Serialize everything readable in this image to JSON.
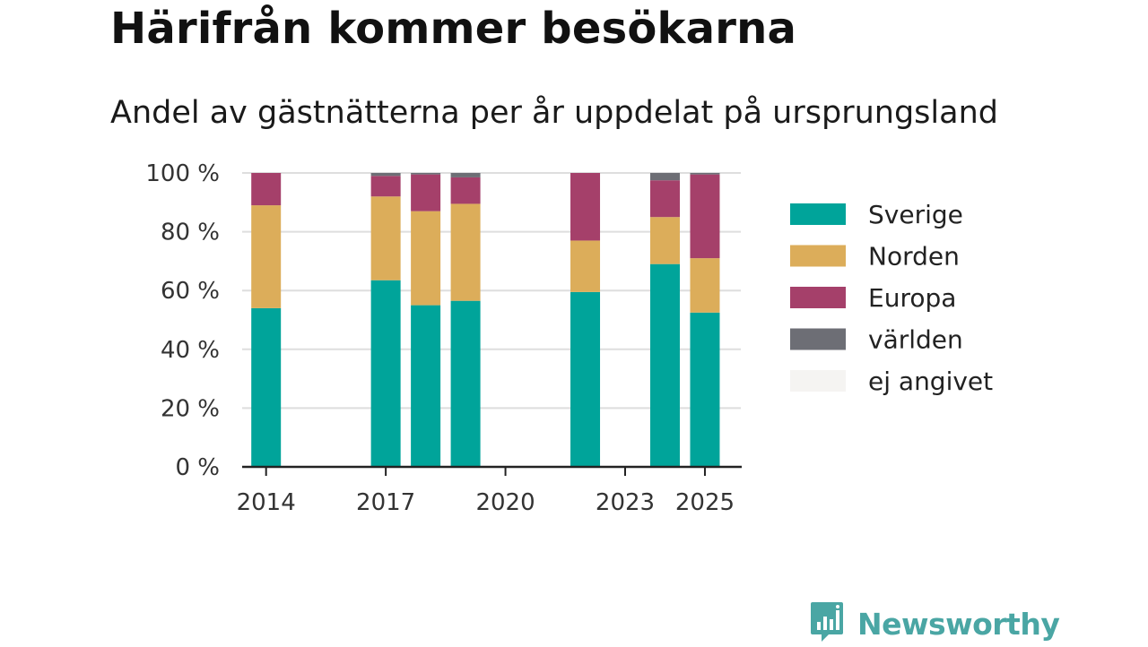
{
  "header": {
    "title": "Härifrån kommer besökarna",
    "subtitle": "Andel av gästnätterna per år uppdelat på ursprungsland"
  },
  "brand": {
    "name": "Newsworthy",
    "color": "#4aa6a4",
    "icon": "bar-chart-logo-icon"
  },
  "chart_data": {
    "type": "bar",
    "stacked": true,
    "x": [
      2014,
      2017,
      2018,
      2019,
      2022,
      2024,
      2025
    ],
    "xticks": [
      2014,
      2017,
      2020,
      2023,
      2025
    ],
    "xlim": [
      2013.4,
      2025.9
    ],
    "yticks": [
      0,
      20,
      40,
      60,
      80,
      100
    ],
    "ytick_labels": [
      "0 %",
      "20 %",
      "40 %",
      "60 %",
      "80 %",
      "100 %"
    ],
    "ylim": [
      0,
      100
    ],
    "grid": true,
    "legend_position": "right",
    "series": [
      {
        "name": "Sverige",
        "color": "#00a49a",
        "values": [
          54,
          63.5,
          55,
          56.5,
          59.5,
          69,
          52.5
        ]
      },
      {
        "name": "Norden",
        "color": "#dcad5a",
        "values": [
          35,
          28.5,
          32,
          33,
          17.5,
          16,
          18.5
        ]
      },
      {
        "name": "Europa",
        "color": "#a5406a",
        "values": [
          11,
          7,
          12.5,
          9,
          23,
          12.5,
          28.5
        ]
      },
      {
        "name": "världen",
        "color": "#6d6e75",
        "values": [
          0,
          1,
          0.5,
          1.5,
          0,
          2.5,
          0.5
        ]
      },
      {
        "name": "ej angivet",
        "color": "#f5f4f2",
        "values": [
          0,
          0,
          0,
          0,
          0,
          0,
          0
        ]
      }
    ]
  }
}
